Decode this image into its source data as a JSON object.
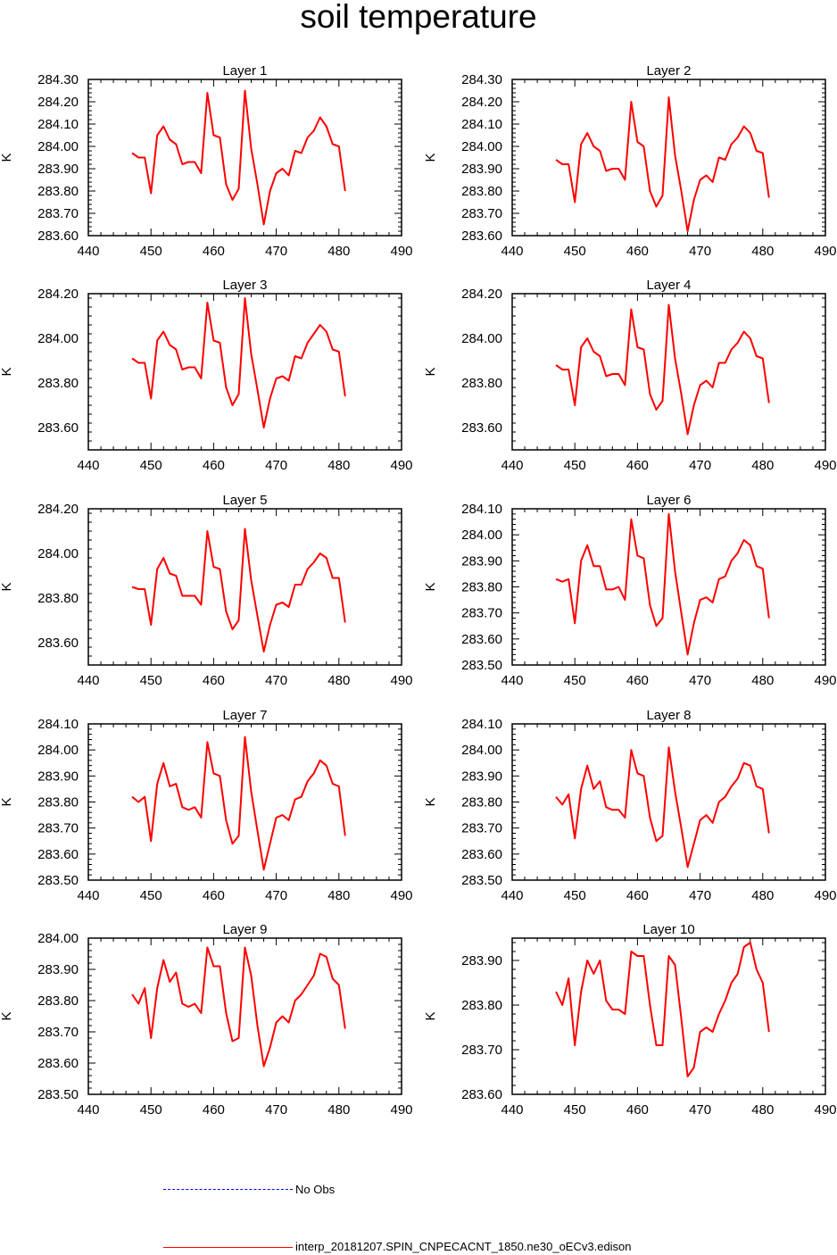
{
  "title": "soil temperature",
  "legend": {
    "no_obs_label": "No Obs",
    "no_obs_color": "#0000ff",
    "model_label": "interp_20181207.SPIN_CNPECACNT_1850.ne30_oECv3.edison",
    "model_color": "#ff0000"
  },
  "chart_data": [
    {
      "type": "line",
      "title": "Layer 1",
      "ylabel": "K",
      "xlim": [
        440,
        490
      ],
      "ylim": [
        283.6,
        284.3
      ],
      "xticks": [
        440,
        450,
        460,
        470,
        480,
        490
      ],
      "yticks": [
        283.6,
        283.7,
        283.8,
        283.9,
        284.0,
        284.1,
        284.2,
        284.3
      ],
      "ytick_labels": [
        "283.60",
        "283.70",
        "283.80",
        "283.90",
        "284.00",
        "284.10",
        "284.20",
        "284.30"
      ],
      "x": [
        447,
        448,
        449,
        450,
        451,
        452,
        453,
        454,
        455,
        456,
        457,
        458,
        459,
        460,
        461,
        462,
        463,
        464,
        465,
        466,
        467,
        468,
        469,
        470,
        471,
        472,
        473,
        474,
        475,
        476,
        477,
        478,
        479,
        480,
        481
      ],
      "series": [
        {
          "name": "interp_20181207.SPIN_CNPECACNT_1850.ne30_oECv3.edison",
          "values": [
            283.97,
            283.95,
            283.95,
            283.79,
            284.05,
            284.09,
            284.03,
            284.01,
            283.92,
            283.93,
            283.93,
            283.88,
            284.24,
            284.05,
            284.04,
            283.83,
            283.76,
            283.81,
            284.25,
            283.99,
            283.83,
            283.65,
            283.8,
            283.88,
            283.9,
            283.87,
            283.98,
            283.97,
            284.04,
            284.07,
            284.13,
            284.09,
            284.01,
            284.0,
            283.8
          ]
        }
      ]
    },
    {
      "type": "line",
      "title": "Layer 2",
      "ylabel": "K",
      "xlim": [
        440,
        490
      ],
      "ylim": [
        283.6,
        284.3
      ],
      "xticks": [
        440,
        450,
        460,
        470,
        480,
        490
      ],
      "yticks": [
        283.6,
        283.7,
        283.8,
        283.9,
        284.0,
        284.1,
        284.2,
        284.3
      ],
      "ytick_labels": [
        "283.60",
        "283.70",
        "283.80",
        "283.90",
        "284.00",
        "284.10",
        "284.20",
        "284.30"
      ],
      "x": [
        447,
        448,
        449,
        450,
        451,
        452,
        453,
        454,
        455,
        456,
        457,
        458,
        459,
        460,
        461,
        462,
        463,
        464,
        465,
        466,
        467,
        468,
        469,
        470,
        471,
        472,
        473,
        474,
        475,
        476,
        477,
        478,
        479,
        480,
        481
      ],
      "series": [
        {
          "name": "interp_20181207.SPIN_CNPECACNT_1850.ne30_oECv3.edison",
          "values": [
            283.94,
            283.92,
            283.92,
            283.75,
            284.01,
            284.06,
            284.0,
            283.98,
            283.89,
            283.9,
            283.9,
            283.85,
            284.2,
            284.02,
            284.0,
            283.8,
            283.73,
            283.78,
            284.22,
            283.96,
            283.8,
            283.62,
            283.76,
            283.85,
            283.87,
            283.84,
            283.95,
            283.94,
            284.01,
            284.04,
            284.09,
            284.06,
            283.98,
            283.97,
            283.77
          ]
        }
      ]
    },
    {
      "type": "line",
      "title": "Layer 3",
      "ylabel": "K",
      "xlim": [
        440,
        490
      ],
      "ylim": [
        283.5,
        284.2
      ],
      "xticks": [
        440,
        450,
        460,
        470,
        480,
        490
      ],
      "yticks": [
        283.6,
        283.8,
        284.0,
        284.2
      ],
      "ytick_labels": [
        "283.60",
        "283.80",
        "284.00",
        "284.20"
      ],
      "x": [
        447,
        448,
        449,
        450,
        451,
        452,
        453,
        454,
        455,
        456,
        457,
        458,
        459,
        460,
        461,
        462,
        463,
        464,
        465,
        466,
        467,
        468,
        469,
        470,
        471,
        472,
        473,
        474,
        475,
        476,
        477,
        478,
        479,
        480,
        481
      ],
      "series": [
        {
          "name": "interp_20181207.SPIN_CNPECACNT_1850.ne30_oECv3.edison",
          "values": [
            283.91,
            283.89,
            283.89,
            283.73,
            283.99,
            284.03,
            283.97,
            283.95,
            283.86,
            283.87,
            283.87,
            283.82,
            284.16,
            283.99,
            283.98,
            283.78,
            283.7,
            283.75,
            284.18,
            283.93,
            283.77,
            283.6,
            283.73,
            283.82,
            283.83,
            283.81,
            283.92,
            283.91,
            283.98,
            284.02,
            284.06,
            284.03,
            283.95,
            283.94,
            283.74
          ]
        }
      ]
    },
    {
      "type": "line",
      "title": "Layer 4",
      "ylabel": "K",
      "xlim": [
        440,
        490
      ],
      "ylim": [
        283.5,
        284.2
      ],
      "xticks": [
        440,
        450,
        460,
        470,
        480,
        490
      ],
      "yticks": [
        283.6,
        283.8,
        284.0,
        284.2
      ],
      "ytick_labels": [
        "283.60",
        "283.80",
        "284.00",
        "284.20"
      ],
      "x": [
        447,
        448,
        449,
        450,
        451,
        452,
        453,
        454,
        455,
        456,
        457,
        458,
        459,
        460,
        461,
        462,
        463,
        464,
        465,
        466,
        467,
        468,
        469,
        470,
        471,
        472,
        473,
        474,
        475,
        476,
        477,
        478,
        479,
        480,
        481
      ],
      "series": [
        {
          "name": "interp_20181207.SPIN_CNPECACNT_1850.ne30_oECv3.edison",
          "values": [
            283.88,
            283.86,
            283.86,
            283.7,
            283.96,
            284.0,
            283.94,
            283.92,
            283.83,
            283.84,
            283.84,
            283.79,
            284.13,
            283.96,
            283.95,
            283.75,
            283.68,
            283.72,
            284.15,
            283.91,
            283.75,
            283.57,
            283.7,
            283.79,
            283.81,
            283.78,
            283.89,
            283.89,
            283.95,
            283.98,
            284.03,
            284.0,
            283.92,
            283.91,
            283.71
          ]
        }
      ]
    },
    {
      "type": "line",
      "title": "Layer 5",
      "ylabel": "K",
      "xlim": [
        440,
        490
      ],
      "ylim": [
        283.5,
        284.2
      ],
      "xticks": [
        440,
        450,
        460,
        470,
        480,
        490
      ],
      "yticks": [
        283.6,
        283.8,
        284.0,
        284.2
      ],
      "ytick_labels": [
        "283.60",
        "283.80",
        "284.00",
        "284.20"
      ],
      "x": [
        447,
        448,
        449,
        450,
        451,
        452,
        453,
        454,
        455,
        456,
        457,
        458,
        459,
        460,
        461,
        462,
        463,
        464,
        465,
        466,
        467,
        468,
        469,
        470,
        471,
        472,
        473,
        474,
        475,
        476,
        477,
        478,
        479,
        480,
        481
      ],
      "series": [
        {
          "name": "interp_20181207.SPIN_CNPECACNT_1850.ne30_oECv3.edison",
          "values": [
            283.85,
            283.84,
            283.84,
            283.68,
            283.93,
            283.98,
            283.91,
            283.9,
            283.81,
            283.81,
            283.81,
            283.77,
            284.1,
            283.94,
            283.93,
            283.74,
            283.66,
            283.7,
            284.11,
            283.88,
            283.72,
            283.56,
            283.68,
            283.77,
            283.78,
            283.76,
            283.86,
            283.86,
            283.93,
            283.96,
            284.0,
            283.98,
            283.89,
            283.89,
            283.69
          ]
        }
      ]
    },
    {
      "type": "line",
      "title": "Layer 6",
      "ylabel": "K",
      "xlim": [
        440,
        490
      ],
      "ylim": [
        283.5,
        284.1
      ],
      "xticks": [
        440,
        450,
        460,
        470,
        480,
        490
      ],
      "yticks": [
        283.5,
        283.6,
        283.7,
        283.8,
        283.9,
        284.0,
        284.1
      ],
      "ytick_labels": [
        "283.50",
        "283.60",
        "283.70",
        "283.80",
        "283.90",
        "284.00",
        "284.10"
      ],
      "x": [
        447,
        448,
        449,
        450,
        451,
        452,
        453,
        454,
        455,
        456,
        457,
        458,
        459,
        460,
        461,
        462,
        463,
        464,
        465,
        466,
        467,
        468,
        469,
        470,
        471,
        472,
        473,
        474,
        475,
        476,
        477,
        478,
        479,
        480,
        481
      ],
      "series": [
        {
          "name": "interp_20181207.SPIN_CNPECACNT_1850.ne30_oECv3.edison",
          "values": [
            283.83,
            283.82,
            283.83,
            283.66,
            283.9,
            283.96,
            283.88,
            283.88,
            283.79,
            283.79,
            283.8,
            283.75,
            284.06,
            283.92,
            283.91,
            283.73,
            283.65,
            283.68,
            284.08,
            283.86,
            283.7,
            283.54,
            283.66,
            283.75,
            283.76,
            283.74,
            283.83,
            283.84,
            283.9,
            283.93,
            283.98,
            283.96,
            283.88,
            283.87,
            283.68
          ]
        }
      ]
    },
    {
      "type": "line",
      "title": "Layer 7",
      "ylabel": "K",
      "xlim": [
        440,
        490
      ],
      "ylim": [
        283.5,
        284.1
      ],
      "xticks": [
        440,
        450,
        460,
        470,
        480,
        490
      ],
      "yticks": [
        283.5,
        283.6,
        283.7,
        283.8,
        283.9,
        284.0,
        284.1
      ],
      "ytick_labels": [
        "283.50",
        "283.60",
        "283.70",
        "283.80",
        "283.90",
        "284.00",
        "284.10"
      ],
      "x": [
        447,
        448,
        449,
        450,
        451,
        452,
        453,
        454,
        455,
        456,
        457,
        458,
        459,
        460,
        461,
        462,
        463,
        464,
        465,
        466,
        467,
        468,
        469,
        470,
        471,
        472,
        473,
        474,
        475,
        476,
        477,
        478,
        479,
        480,
        481
      ],
      "series": [
        {
          "name": "interp_20181207.SPIN_CNPECACNT_1850.ne30_oECv3.edison",
          "values": [
            283.82,
            283.8,
            283.82,
            283.65,
            283.87,
            283.95,
            283.86,
            283.87,
            283.78,
            283.77,
            283.78,
            283.74,
            284.03,
            283.91,
            283.9,
            283.73,
            283.64,
            283.67,
            284.05,
            283.84,
            283.69,
            283.54,
            283.64,
            283.74,
            283.75,
            283.73,
            283.81,
            283.82,
            283.88,
            283.91,
            283.96,
            283.94,
            283.87,
            283.86,
            283.67
          ]
        }
      ]
    },
    {
      "type": "line",
      "title": "Layer 8",
      "ylabel": "K",
      "xlim": [
        440,
        490
      ],
      "ylim": [
        283.5,
        284.1
      ],
      "xticks": [
        440,
        450,
        460,
        470,
        480,
        490
      ],
      "yticks": [
        283.5,
        283.6,
        283.7,
        283.8,
        283.9,
        284.0,
        284.1
      ],
      "ytick_labels": [
        "283.50",
        "283.60",
        "283.70",
        "283.80",
        "283.90",
        "284.00",
        "284.10"
      ],
      "x": [
        447,
        448,
        449,
        450,
        451,
        452,
        453,
        454,
        455,
        456,
        457,
        458,
        459,
        460,
        461,
        462,
        463,
        464,
        465,
        466,
        467,
        468,
        469,
        470,
        471,
        472,
        473,
        474,
        475,
        476,
        477,
        478,
        479,
        480,
        481
      ],
      "series": [
        {
          "name": "interp_20181207.SPIN_CNPECACNT_1850.ne30_oECv3.edison",
          "values": [
            283.82,
            283.79,
            283.83,
            283.66,
            283.85,
            283.94,
            283.85,
            283.88,
            283.78,
            283.77,
            283.77,
            283.74,
            284.0,
            283.91,
            283.9,
            283.74,
            283.65,
            283.67,
            284.01,
            283.84,
            283.7,
            283.55,
            283.64,
            283.73,
            283.75,
            283.72,
            283.8,
            283.82,
            283.86,
            283.89,
            283.95,
            283.94,
            283.86,
            283.85,
            283.68
          ]
        }
      ]
    },
    {
      "type": "line",
      "title": "Layer 9",
      "ylabel": "K",
      "xlim": [
        440,
        490
      ],
      "ylim": [
        283.5,
        284.0
      ],
      "xticks": [
        440,
        450,
        460,
        470,
        480,
        490
      ],
      "yticks": [
        283.5,
        283.6,
        283.7,
        283.8,
        283.9,
        284.0
      ],
      "ytick_labels": [
        "283.50",
        "283.60",
        "283.70",
        "283.80",
        "283.90",
        "284.00"
      ],
      "x": [
        447,
        448,
        449,
        450,
        451,
        452,
        453,
        454,
        455,
        456,
        457,
        458,
        459,
        460,
        461,
        462,
        463,
        464,
        465,
        466,
        467,
        468,
        469,
        470,
        471,
        472,
        473,
        474,
        475,
        476,
        477,
        478,
        479,
        480,
        481
      ],
      "series": [
        {
          "name": "interp_20181207.SPIN_CNPECACNT_1850.ne30_oECv3.edison",
          "values": [
            283.82,
            283.79,
            283.84,
            283.68,
            283.84,
            283.93,
            283.86,
            283.89,
            283.79,
            283.78,
            283.79,
            283.76,
            283.97,
            283.91,
            283.91,
            283.76,
            283.67,
            283.68,
            283.97,
            283.88,
            283.72,
            283.59,
            283.65,
            283.73,
            283.75,
            283.73,
            283.8,
            283.82,
            283.85,
            283.88,
            283.95,
            283.94,
            283.87,
            283.85,
            283.71
          ]
        }
      ]
    },
    {
      "type": "line",
      "title": "Layer 10",
      "ylabel": "K",
      "xlim": [
        440,
        490
      ],
      "ylim": [
        283.6,
        283.95
      ],
      "xticks": [
        440,
        450,
        460,
        470,
        480,
        490
      ],
      "yticks": [
        283.6,
        283.7,
        283.8,
        283.9
      ],
      "ytick_labels": [
        "283.60",
        "283.70",
        "283.80",
        "283.90"
      ],
      "x": [
        447,
        448,
        449,
        450,
        451,
        452,
        453,
        454,
        455,
        456,
        457,
        458,
        459,
        460,
        461,
        462,
        463,
        464,
        465,
        466,
        467,
        468,
        469,
        470,
        471,
        472,
        473,
        474,
        475,
        476,
        477,
        478,
        479,
        480,
        481
      ],
      "series": [
        {
          "name": "interp_20181207.SPIN_CNPECACNT_1850.ne30_oECv3.edison",
          "values": [
            283.83,
            283.8,
            283.86,
            283.71,
            283.83,
            283.9,
            283.87,
            283.9,
            283.81,
            283.79,
            283.79,
            283.78,
            283.92,
            283.91,
            283.91,
            283.8,
            283.71,
            283.71,
            283.91,
            283.89,
            283.77,
            283.64,
            283.66,
            283.74,
            283.75,
            283.74,
            283.78,
            283.81,
            283.85,
            283.87,
            283.93,
            283.94,
            283.88,
            283.85,
            283.74
          ]
        }
      ]
    }
  ]
}
